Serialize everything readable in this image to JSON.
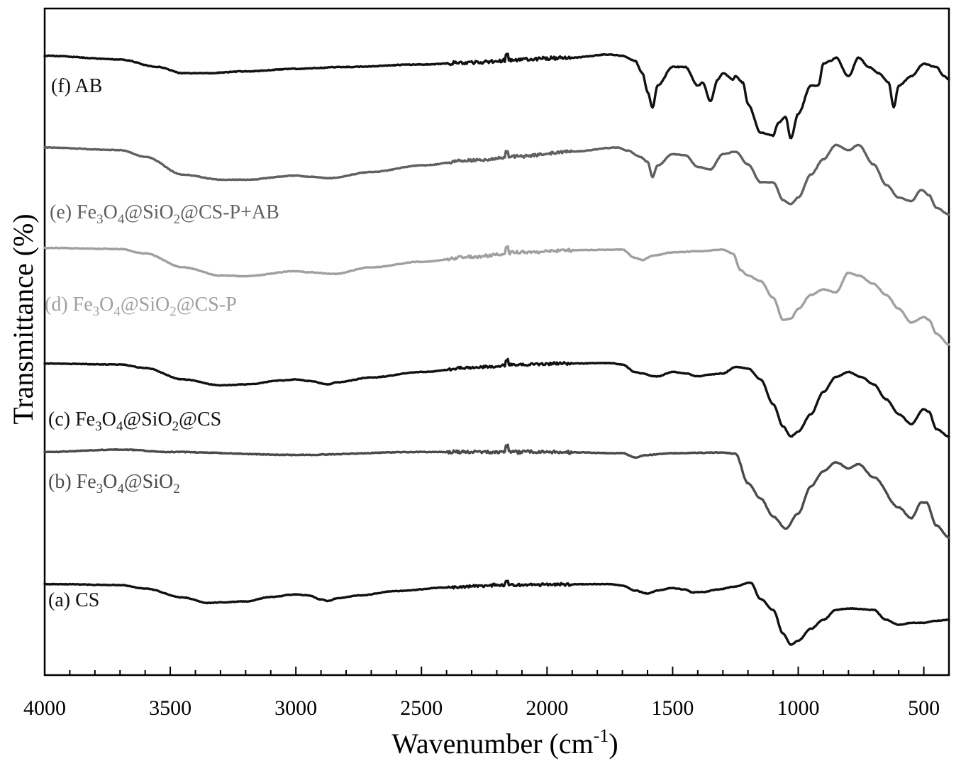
{
  "chart_data": {
    "type": "line",
    "title": "",
    "xlabel": "Wavenumber (cm",
    "xlabel_sup": "-1",
    "xlabel_close": ")",
    "ylabel": "Transmittance (%)",
    "xlim": [
      4000,
      400
    ],
    "x_reversed": true,
    "grid": false,
    "legend": "inline labels",
    "x_ticks": [
      4000,
      3500,
      3000,
      2500,
      2000,
      1500,
      1000,
      500
    ],
    "x_tick_labels": [
      "4000",
      "3500",
      "3000",
      "2500",
      "2000",
      "1500",
      "1000",
      "500"
    ],
    "series": [
      {
        "id": "a",
        "label": [
          {
            "t": "(a) CS"
          }
        ],
        "color": "#111111",
        "points": [
          [
            4000,
            0.52
          ],
          [
            3700,
            0.5
          ],
          [
            3600,
            0.43
          ],
          [
            3450,
            0.25
          ],
          [
            3350,
            0.14
          ],
          [
            3300,
            0.15
          ],
          [
            3200,
            0.17
          ],
          [
            3100,
            0.26
          ],
          [
            3000,
            0.31
          ],
          [
            2950,
            0.29
          ],
          [
            2900,
            0.21
          ],
          [
            2870,
            0.18
          ],
          [
            2840,
            0.23
          ],
          [
            2750,
            0.29
          ],
          [
            2600,
            0.38
          ],
          [
            2400,
            0.45
          ],
          [
            2200,
            0.5
          ],
          [
            2000,
            0.51
          ],
          [
            1750,
            0.52
          ],
          [
            1700,
            0.49
          ],
          [
            1650,
            0.39
          ],
          [
            1600,
            0.33
          ],
          [
            1560,
            0.39
          ],
          [
            1500,
            0.44
          ],
          [
            1450,
            0.41
          ],
          [
            1420,
            0.35
          ],
          [
            1380,
            0.36
          ],
          [
            1320,
            0.41
          ],
          [
            1250,
            0.47
          ],
          [
            1190,
            0.55
          ],
          [
            1150,
            0.22
          ],
          [
            1100,
            0.0
          ],
          [
            1060,
            -0.48
          ],
          [
            1030,
            -0.7
          ],
          [
            1000,
            -0.62
          ],
          [
            950,
            -0.38
          ],
          [
            900,
            -0.2
          ],
          [
            850,
            0.0
          ],
          [
            800,
            0.03
          ],
          [
            700,
            0.0
          ],
          [
            650,
            -0.2
          ],
          [
            600,
            -0.3
          ],
          [
            550,
            -0.26
          ],
          [
            500,
            -0.26
          ],
          [
            450,
            -0.22
          ],
          [
            400,
            -0.2
          ]
        ]
      },
      {
        "id": "b",
        "label": [
          {
            "t": "(b) Fe"
          },
          {
            "t": "3",
            "s": "sub"
          },
          {
            "t": "O"
          },
          {
            "t": "4",
            "s": "sub"
          },
          {
            "t": "@SiO"
          },
          {
            "t": "2",
            "s": "sub"
          }
        ],
        "color": "#4a4a4a",
        "points": [
          [
            4000,
            0.82
          ],
          [
            3700,
            0.86
          ],
          [
            3500,
            0.82
          ],
          [
            3000,
            0.77
          ],
          [
            2500,
            0.82
          ],
          [
            2000,
            0.82
          ],
          [
            1700,
            0.8
          ],
          [
            1650,
            0.73
          ],
          [
            1600,
            0.77
          ],
          [
            1500,
            0.8
          ],
          [
            1300,
            0.81
          ],
          [
            1250,
            0.79
          ],
          [
            1200,
            0.3
          ],
          [
            1150,
            0.05
          ],
          [
            1100,
            -0.25
          ],
          [
            1050,
            -0.45
          ],
          [
            1000,
            -0.2
          ],
          [
            950,
            0.25
          ],
          [
            900,
            0.5
          ],
          [
            850,
            0.65
          ],
          [
            800,
            0.55
          ],
          [
            760,
            0.62
          ],
          [
            700,
            0.4
          ],
          [
            600,
            -0.1
          ],
          [
            550,
            -0.28
          ],
          [
            510,
            -0.02
          ],
          [
            490,
            -0.02
          ],
          [
            450,
            -0.4
          ],
          [
            400,
            -0.6
          ]
        ]
      },
      {
        "id": "c",
        "label": [
          {
            "t": "(c) Fe"
          },
          {
            "t": "3",
            "s": "sub"
          },
          {
            "t": "O"
          },
          {
            "t": "4",
            "s": "sub"
          },
          {
            "t": "@SiO"
          },
          {
            "t": "2",
            "s": "sub"
          },
          {
            "t": "@CS"
          }
        ],
        "color": "#111111",
        "points": [
          [
            4000,
            0.72
          ],
          [
            3700,
            0.7
          ],
          [
            3600,
            0.63
          ],
          [
            3450,
            0.4
          ],
          [
            3300,
            0.28
          ],
          [
            3200,
            0.3
          ],
          [
            3050,
            0.38
          ],
          [
            3000,
            0.4
          ],
          [
            2950,
            0.37
          ],
          [
            2870,
            0.3
          ],
          [
            2840,
            0.34
          ],
          [
            2700,
            0.44
          ],
          [
            2500,
            0.55
          ],
          [
            2300,
            0.64
          ],
          [
            2100,
            0.7
          ],
          [
            1900,
            0.72
          ],
          [
            1750,
            0.73
          ],
          [
            1700,
            0.7
          ],
          [
            1650,
            0.55
          ],
          [
            1620,
            0.52
          ],
          [
            1580,
            0.47
          ],
          [
            1560,
            0.46
          ],
          [
            1500,
            0.55
          ],
          [
            1450,
            0.52
          ],
          [
            1400,
            0.46
          ],
          [
            1350,
            0.5
          ],
          [
            1300,
            0.52
          ],
          [
            1250,
            0.65
          ],
          [
            1200,
            0.62
          ],
          [
            1150,
            0.4
          ],
          [
            1100,
            -0.1
          ],
          [
            1060,
            -0.55
          ],
          [
            1030,
            -0.75
          ],
          [
            1000,
            -0.65
          ],
          [
            950,
            -0.3
          ],
          [
            900,
            0.15
          ],
          [
            850,
            0.45
          ],
          [
            800,
            0.55
          ],
          [
            750,
            0.45
          ],
          [
            700,
            0.3
          ],
          [
            650,
            0.0
          ],
          [
            600,
            -0.3
          ],
          [
            550,
            -0.5
          ],
          [
            500,
            -0.2
          ],
          [
            480,
            -0.25
          ],
          [
            450,
            -0.6
          ],
          [
            400,
            -0.75
          ]
        ]
      },
      {
        "id": "d",
        "label": [
          {
            "t": "(d) Fe"
          },
          {
            "t": "3",
            "s": "sub"
          },
          {
            "t": "O"
          },
          {
            "t": "4",
            "s": "sub"
          },
          {
            "t": "@SiO"
          },
          {
            "t": "2",
            "s": "sub"
          },
          {
            "t": "@CS-P"
          }
        ],
        "color": "#a0a0a0",
        "points": [
          [
            4000,
            0.8
          ],
          [
            3700,
            0.78
          ],
          [
            3600,
            0.7
          ],
          [
            3450,
            0.45
          ],
          [
            3300,
            0.3
          ],
          [
            3200,
            0.29
          ],
          [
            3000,
            0.38
          ],
          [
            2950,
            0.36
          ],
          [
            2850,
            0.33
          ],
          [
            2700,
            0.45
          ],
          [
            2500,
            0.55
          ],
          [
            2300,
            0.64
          ],
          [
            2100,
            0.72
          ],
          [
            1900,
            0.76
          ],
          [
            1700,
            0.77
          ],
          [
            1650,
            0.62
          ],
          [
            1620,
            0.58
          ],
          [
            1580,
            0.66
          ],
          [
            1500,
            0.72
          ],
          [
            1400,
            0.74
          ],
          [
            1300,
            0.77
          ],
          [
            1260,
            0.7
          ],
          [
            1230,
            0.4
          ],
          [
            1200,
            0.3
          ],
          [
            1150,
            0.2
          ],
          [
            1100,
            -0.1
          ],
          [
            1060,
            -0.5
          ],
          [
            1030,
            -0.48
          ],
          [
            1000,
            -0.3
          ],
          [
            950,
            -0.05
          ],
          [
            900,
            0.05
          ],
          [
            850,
            0.0
          ],
          [
            800,
            0.35
          ],
          [
            760,
            0.3
          ],
          [
            700,
            0.15
          ],
          [
            650,
            -0.05
          ],
          [
            600,
            -0.3
          ],
          [
            550,
            -0.55
          ],
          [
            500,
            -0.45
          ],
          [
            480,
            -0.5
          ],
          [
            450,
            -0.75
          ],
          [
            400,
            -0.95
          ]
        ]
      },
      {
        "id": "e",
        "label": [
          {
            "t": "(e) Fe"
          },
          {
            "t": "3",
            "s": "sub"
          },
          {
            "t": "O"
          },
          {
            "t": "4",
            "s": "sub"
          },
          {
            "t": "@SiO"
          },
          {
            "t": "2",
            "s": "sub"
          },
          {
            "t": "@CS-P+AB"
          }
        ],
        "color": "#606060",
        "points": [
          [
            4000,
            0.93
          ],
          [
            3700,
            0.88
          ],
          [
            3600,
            0.75
          ],
          [
            3450,
            0.4
          ],
          [
            3300,
            0.3
          ],
          [
            3200,
            0.3
          ],
          [
            3000,
            0.38
          ],
          [
            2950,
            0.36
          ],
          [
            2870,
            0.33
          ],
          [
            2700,
            0.45
          ],
          [
            2500,
            0.58
          ],
          [
            2300,
            0.68
          ],
          [
            2100,
            0.76
          ],
          [
            1900,
            0.85
          ],
          [
            1720,
            0.93
          ],
          [
            1680,
            0.87
          ],
          [
            1630,
            0.75
          ],
          [
            1600,
            0.65
          ],
          [
            1580,
            0.35
          ],
          [
            1560,
            0.58
          ],
          [
            1500,
            0.8
          ],
          [
            1450,
            0.78
          ],
          [
            1400,
            0.55
          ],
          [
            1350,
            0.5
          ],
          [
            1300,
            0.8
          ],
          [
            1250,
            0.85
          ],
          [
            1200,
            0.6
          ],
          [
            1150,
            0.25
          ],
          [
            1100,
            0.25
          ],
          [
            1060,
            -0.1
          ],
          [
            1030,
            -0.18
          ],
          [
            1000,
            -0.05
          ],
          [
            950,
            0.4
          ],
          [
            900,
            0.7
          ],
          [
            850,
            0.98
          ],
          [
            800,
            0.88
          ],
          [
            760,
            0.98
          ],
          [
            700,
            0.6
          ],
          [
            650,
            0.2
          ],
          [
            600,
            -0.05
          ],
          [
            550,
            -0.12
          ],
          [
            510,
            0.1
          ],
          [
            480,
            0.0
          ],
          [
            450,
            -0.25
          ],
          [
            400,
            -0.38
          ]
        ]
      },
      {
        "id": "f",
        "label": [
          {
            "t": "(f) AB"
          }
        ],
        "color": "#111111",
        "points": [
          [
            4000,
            0.88
          ],
          [
            3700,
            0.82
          ],
          [
            3550,
            0.7
          ],
          [
            3450,
            0.6
          ],
          [
            3350,
            0.6
          ],
          [
            3200,
            0.63
          ],
          [
            3000,
            0.67
          ],
          [
            2800,
            0.7
          ],
          [
            2500,
            0.74
          ],
          [
            2300,
            0.77
          ],
          [
            2100,
            0.82
          ],
          [
            1900,
            0.85
          ],
          [
            1750,
            0.9
          ],
          [
            1700,
            0.88
          ],
          [
            1650,
            0.8
          ],
          [
            1620,
            0.6
          ],
          [
            1600,
            0.3
          ],
          [
            1580,
            0.05
          ],
          [
            1560,
            0.4
          ],
          [
            1500,
            0.7
          ],
          [
            1450,
            0.7
          ],
          [
            1400,
            0.4
          ],
          [
            1380,
            0.45
          ],
          [
            1350,
            0.15
          ],
          [
            1320,
            0.5
          ],
          [
            1300,
            0.6
          ],
          [
            1260,
            0.5
          ],
          [
            1250,
            0.55
          ],
          [
            1220,
            0.45
          ],
          [
            1200,
            0.1
          ],
          [
            1150,
            -0.35
          ],
          [
            1100,
            -0.4
          ],
          [
            1080,
            -0.2
          ],
          [
            1050,
            -0.1
          ],
          [
            1030,
            -0.45
          ],
          [
            1000,
            -0.05
          ],
          [
            950,
            0.4
          ],
          [
            920,
            0.4
          ],
          [
            900,
            0.75
          ],
          [
            870,
            0.8
          ],
          [
            850,
            0.85
          ],
          [
            800,
            0.55
          ],
          [
            760,
            0.85
          ],
          [
            720,
            0.7
          ],
          [
            680,
            0.6
          ],
          [
            640,
            0.45
          ],
          [
            620,
            0.05
          ],
          [
            600,
            0.4
          ],
          [
            550,
            0.55
          ],
          [
            500,
            0.75
          ],
          [
            450,
            0.7
          ],
          [
            420,
            0.55
          ],
          [
            400,
            0.5
          ]
        ]
      }
    ]
  }
}
